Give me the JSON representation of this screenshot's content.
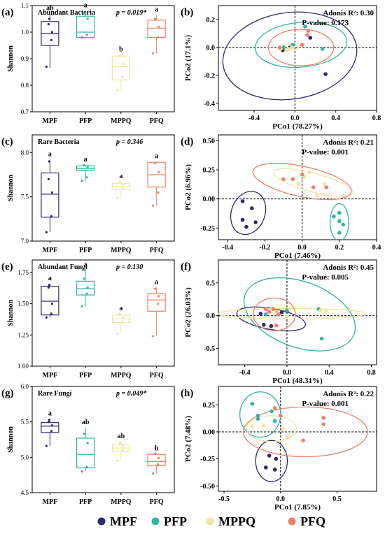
{
  "legend": [
    {
      "name": "MPF",
      "color": "#2b2a6e"
    },
    {
      "name": "PFP",
      "color": "#32b4a2"
    },
    {
      "name": "MPPQ",
      "color": "#f0e6a0"
    },
    {
      "name": "PFQ",
      "color": "#f07f68"
    }
  ],
  "chart_data": [
    {
      "type": "box",
      "panel": "(a)",
      "title": "Abundant Bacteria",
      "pvalue": "p = 0.019*",
      "ylabel": "Shannon",
      "ylim": [
        0.7,
        1.1
      ],
      "yticks": [
        0.7,
        0.8,
        0.9,
        1.0,
        1.1
      ],
      "categories": [
        "MPF",
        "PFP",
        "MPPQ",
        "PFQ"
      ],
      "letters": [
        "ab",
        "a",
        "b",
        "a"
      ],
      "boxes": [
        {
          "min": 0.865,
          "q1": 0.95,
          "median": 0.995,
          "q3": 1.04,
          "max": 1.07,
          "points": [
            0.87,
            0.97,
            1.0,
            1.03,
            1.05
          ]
        },
        {
          "min": 0.975,
          "q1": 0.98,
          "median": 1.0,
          "q3": 1.06,
          "max": 1.08,
          "points": [
            0.98,
            0.99,
            1.05,
            1.07
          ]
        },
        {
          "min": 0.78,
          "q1": 0.82,
          "median": 0.87,
          "q3": 0.91,
          "max": 0.915,
          "points": [
            0.78,
            0.83,
            0.88,
            0.91
          ]
        },
        {
          "min": 0.92,
          "q1": 0.98,
          "median": 1.015,
          "q3": 1.045,
          "max": 1.065,
          "points": [
            0.92,
            0.98,
            1.02,
            1.05
          ]
        }
      ]
    },
    {
      "type": "scatter",
      "panel": "(b)",
      "adonis": "Adonis R²: 0.30",
      "pvalue": "P-value: 0.173",
      "xlabel": "PCo1 (78.27%)",
      "ylabel": "PCo2 (17.1%)",
      "xlim": [
        -0.75,
        0.8
      ],
      "ylim": [
        -0.45,
        0.3
      ],
      "xticks": [
        -0.4,
        0.0,
        0.4,
        0.8
      ],
      "yticks": [
        -0.4,
        -0.2,
        0.0,
        0.2
      ],
      "xticklabels": [
        "-0.4",
        "0.0",
        "0.4",
        "0.8"
      ],
      "yticklabels": [
        "-0.4",
        "-0.2",
        "0.0",
        "0.2"
      ],
      "series": [
        {
          "name": "MPF",
          "points": [
            [
              -0.12,
              -0.02
            ],
            [
              -0.05,
              0.0
            ],
            [
              0.15,
              0.07
            ],
            [
              0.3,
              -0.19
            ]
          ],
          "ellipse": {
            "cx": -0.05,
            "cy": -0.06,
            "rx": 0.66,
            "ry": 0.31,
            "angle": 8
          }
        },
        {
          "name": "PFP",
          "points": [
            [
              -0.11,
              0.0
            ],
            [
              -0.02,
              0.02
            ],
            [
              0.1,
              0.15
            ],
            [
              0.27,
              -0.01
            ]
          ],
          "ellipse": {
            "cx": 0.06,
            "cy": 0.02,
            "rx": 0.45,
            "ry": 0.16,
            "angle": 5
          }
        },
        {
          "name": "MPPQ",
          "points": [
            [
              -0.14,
              -0.01
            ],
            [
              -0.08,
              -0.02
            ],
            [
              -0.06,
              -0.01
            ],
            [
              -0.03,
              0.0
            ]
          ],
          "ellipse": {
            "cx": -0.06,
            "cy": 0.0,
            "rx": 0.1,
            "ry": 0.02,
            "angle": 0
          }
        },
        {
          "name": "PFQ",
          "points": [
            [
              -0.15,
              0.0
            ],
            [
              0.07,
              0.02
            ],
            [
              0.12,
              0.09
            ],
            [
              0.13,
              0.12
            ]
          ],
          "ellipse": {
            "cx": 0.06,
            "cy": -0.0,
            "rx": 0.32,
            "ry": 0.13,
            "angle": 0
          }
        }
      ]
    },
    {
      "type": "box",
      "panel": "(c)",
      "title": "Rare Bacteria",
      "pvalue": "p = 0.346",
      "ylabel": "Shannon",
      "ylim": [
        7.0,
        8.2
      ],
      "yticks": [
        7.0,
        7.5,
        8.0
      ],
      "categories": [
        "MPF",
        "PFP",
        "MPPQ",
        "PFQ"
      ],
      "letters": [
        "a",
        "a",
        "a",
        "a"
      ],
      "boxes": [
        {
          "min": 7.1,
          "q1": 7.27,
          "median": 7.53,
          "q3": 7.77,
          "max": 7.92,
          "points": [
            7.1,
            7.28,
            7.55,
            7.7,
            7.9
          ]
        },
        {
          "min": 7.68,
          "q1": 7.8,
          "median": 7.82,
          "q3": 7.85,
          "max": 7.86,
          "points": [
            7.68,
            7.72,
            7.84,
            7.86
          ]
        },
        {
          "min": 7.48,
          "q1": 7.58,
          "median": 7.62,
          "q3": 7.65,
          "max": 7.67,
          "points": [
            7.49,
            7.6,
            7.64,
            7.67
          ]
        },
        {
          "min": 7.4,
          "q1": 7.61,
          "median": 7.75,
          "q3": 7.89,
          "max": 7.9,
          "points": [
            7.4,
            7.55,
            7.78,
            7.88
          ]
        }
      ]
    },
    {
      "type": "scatter",
      "panel": "(d)",
      "adonis": "Adonis R²: 0.21",
      "pvalue": "P-value: 0.001",
      "xlabel": "PCo1 (7.46%)",
      "ylabel": "PCo2 (6.96%)",
      "xlim": [
        -0.45,
        0.4
      ],
      "ylim": [
        -0.35,
        0.55
      ],
      "xticks": [
        -0.4,
        -0.2,
        0.0,
        0.2,
        0.4
      ],
      "yticks": [
        -0.25,
        0.0,
        0.25,
        0.5
      ],
      "xticklabels": [
        "-0.4",
        "-0.2",
        "0.0",
        "0.2",
        "0.4"
      ],
      "yticklabels": [
        "-0.25",
        "0.00",
        "0.25",
        "0.50"
      ],
      "series": [
        {
          "name": "MPF",
          "points": [
            [
              -0.32,
              -0.02
            ],
            [
              -0.27,
              -0.08
            ],
            [
              -0.32,
              -0.18
            ],
            [
              -0.3,
              -0.24
            ],
            [
              -0.25,
              -0.2
            ]
          ],
          "ellipse": {
            "cx": -0.29,
            "cy": -0.12,
            "rx": 0.09,
            "ry": 0.19,
            "angle": -20
          }
        },
        {
          "name": "PFP",
          "points": [
            [
              0.17,
              -0.15
            ],
            [
              0.2,
              -0.19
            ],
            [
              0.2,
              -0.29
            ],
            [
              0.22,
              -0.22
            ],
            [
              0.2,
              -0.12
            ]
          ],
          "ellipse": {
            "cx": 0.2,
            "cy": -0.2,
            "rx": 0.05,
            "ry": 0.16,
            "angle": 0
          }
        },
        {
          "name": "MPPQ",
          "points": [
            [
              -0.02,
              0.13
            ],
            [
              0.01,
              0.19
            ],
            [
              0.04,
              0.23
            ],
            [
              0.12,
              0.13
            ],
            [
              0.08,
              0.03
            ]
          ],
          "ellipse": {
            "cx": 0.06,
            "cy": 0.14,
            "rx": 0.22,
            "ry": 0.08,
            "angle": -15
          }
        },
        {
          "name": "PFQ",
          "points": [
            [
              -0.1,
              0.17
            ],
            [
              -0.05,
              0.17
            ],
            [
              0.0,
              0.21
            ],
            [
              0.06,
              0.1
            ],
            [
              0.13,
              0.1
            ]
          ],
          "ellipse": {
            "cx": 0.0,
            "cy": 0.15,
            "rx": 0.27,
            "ry": 0.13,
            "angle": -12
          }
        }
      ]
    },
    {
      "type": "box",
      "panel": "(e)",
      "title": "Abundant Fungi",
      "pvalue": "p = 0.130",
      "ylabel": "Shannon",
      "ylim": [
        1.0,
        1.85
      ],
      "yticks": [
        1.0,
        1.25,
        1.5,
        1.75
      ],
      "yticklabels": [
        "1.00",
        "1.25",
        "1.50",
        "1.75"
      ],
      "categories": [
        "MPF",
        "PFP",
        "MPPQ",
        "PFQ"
      ],
      "letters": [
        "a",
        "a",
        "a",
        "a"
      ],
      "boxes": [
        {
          "min": 1.39,
          "q1": 1.41,
          "median": 1.52,
          "q3": 1.64,
          "max": 1.66,
          "points": [
            1.39,
            1.42,
            1.5,
            1.63,
            1.65
          ]
        },
        {
          "min": 1.48,
          "q1": 1.57,
          "median": 1.62,
          "q3": 1.68,
          "max": 1.77,
          "points": [
            1.48,
            1.58,
            1.63,
            1.7,
            1.77
          ]
        },
        {
          "min": 1.26,
          "q1": 1.35,
          "median": 1.38,
          "q3": 1.41,
          "max": 1.42,
          "points": [
            1.26,
            1.36,
            1.39,
            1.42
          ]
        },
        {
          "min": 1.24,
          "q1": 1.44,
          "median": 1.53,
          "q3": 1.58,
          "max": 1.63,
          "points": [
            1.24,
            1.5,
            1.56,
            1.62
          ]
        }
      ]
    },
    {
      "type": "scatter",
      "panel": "(f)",
      "adonis": "Adonis R²: 0.45",
      "pvalue": "P-value: 0.005",
      "xlabel": "PCo1 (48.31%)",
      "ylabel": "PCo2 (26.03%)",
      "xlim": [
        -0.65,
        0.85
      ],
      "ylim": [
        -0.75,
        0.85
      ],
      "xticks": [
        -0.4,
        0.0,
        0.4,
        0.8
      ],
      "yticks": [
        -0.5,
        0.0,
        0.5
      ],
      "xticklabels": [
        "-0.4",
        "0.0",
        "0.4",
        "0.8"
      ],
      "yticklabels": [
        "-0.5",
        "0.0",
        "0.5"
      ],
      "series": [
        {
          "name": "MPF",
          "points": [
            [
              -0.25,
              0.03
            ],
            [
              -0.22,
              -0.14
            ],
            [
              -0.15,
              -0.16
            ],
            [
              -0.05,
              0.05
            ],
            [
              0.0,
              0.07
            ]
          ],
          "ellipse": {
            "cx": -0.15,
            "cy": -0.05,
            "rx": 0.33,
            "ry": 0.16,
            "angle": -10
          }
        },
        {
          "name": "PFP",
          "points": [
            [
              -0.2,
              0.02
            ],
            [
              -0.1,
              0.05
            ],
            [
              0.0,
              0.08
            ],
            [
              0.3,
              0.1
            ],
            [
              0.33,
              -0.35
            ]
          ],
          "ellipse": {
            "cx": 0.12,
            "cy": 0.02,
            "rx": 0.55,
            "ry": 0.5,
            "angle": -20
          }
        },
        {
          "name": "MPPQ",
          "points": [
            [
              -0.15,
              0.05
            ],
            [
              -0.1,
              0.04
            ],
            [
              0.0,
              0.0
            ],
            [
              0.32,
              0.08
            ],
            [
              0.37,
              0.07
            ]
          ],
          "ellipse": {
            "cx": 0.05,
            "cy": 0.03,
            "rx": 0.7,
            "ry": 0.08,
            "angle": 0
          }
        },
        {
          "name": "PFQ",
          "points": [
            [
              -0.2,
              0.1
            ],
            [
              -0.17,
              0.06
            ],
            [
              -0.13,
              0.1
            ],
            [
              -0.08,
              0.02
            ],
            [
              -0.1,
              -0.15
            ]
          ],
          "ellipse": {
            "cx": -0.12,
            "cy": 0.02,
            "rx": 0.2,
            "ry": 0.25,
            "angle": 0
          }
        }
      ]
    },
    {
      "type": "box",
      "panel": "(g)",
      "title": "Rare Fungi",
      "pvalue": "p = 0.049*",
      "ylabel": "Shannon",
      "ylim": [
        4.5,
        6.0
      ],
      "yticks": [
        4.5,
        5.0,
        5.5,
        6.0
      ],
      "categories": [
        "MPF",
        "PFP",
        "MPPQ",
        "PFQ"
      ],
      "letters": [
        "a",
        "ab",
        "ab",
        "b"
      ],
      "boxes": [
        {
          "min": 5.16,
          "q1": 5.35,
          "median": 5.44,
          "q3": 5.49,
          "max": 5.54,
          "points": [
            5.16,
            5.37,
            5.45,
            5.5,
            5.53
          ]
        },
        {
          "min": 4.8,
          "q1": 4.85,
          "median": 5.04,
          "q3": 5.27,
          "max": 5.42,
          "points": [
            4.8,
            4.86,
            5.2,
            5.33
          ]
        },
        {
          "min": 4.95,
          "q1": 5.08,
          "median": 5.13,
          "q3": 5.18,
          "max": 5.22,
          "points": [
            4.95,
            5.1,
            5.16,
            5.2
          ]
        },
        {
          "min": 4.77,
          "q1": 4.88,
          "median": 4.94,
          "q3": 5.04,
          "max": 5.05,
          "points": [
            4.77,
            4.9,
            4.99,
            5.05
          ]
        }
      ]
    },
    {
      "type": "scatter",
      "panel": "(h)",
      "adonis": "Adonis R²: 0.22",
      "pvalue": "P-value: 0.001",
      "xlabel": "PCo1 (7.85%)",
      "ylabel": "PCo2 (7.48%)",
      "xlim": [
        -0.55,
        0.85
      ],
      "ylim": [
        -0.55,
        0.42
      ],
      "xticks": [
        -0.5,
        0.0,
        0.5
      ],
      "yticks": [
        -0.5,
        -0.25,
        0.0,
        0.25
      ],
      "xticklabels": [
        "-0.5",
        "0.0",
        "0.5"
      ],
      "yticklabels": [
        "-0.50",
        "-0.25",
        "0.00",
        "0.25"
      ],
      "series": [
        {
          "name": "MPF",
          "points": [
            [
              -0.1,
              -0.22
            ],
            [
              -0.04,
              -0.25
            ],
            [
              -0.05,
              -0.35
            ],
            [
              -0.13,
              -0.33
            ]
          ],
          "ellipse": {
            "cx": -0.08,
            "cy": -0.27,
            "rx": 0.14,
            "ry": 0.19,
            "angle": 0
          }
        },
        {
          "name": "PFP",
          "points": [
            [
              -0.25,
              0.26
            ],
            [
              -0.2,
              0.15
            ],
            [
              -0.2,
              0.12
            ],
            [
              -0.08,
              0.19
            ],
            [
              -0.05,
              0.1
            ]
          ],
          "ellipse": {
            "cx": -0.18,
            "cy": 0.16,
            "rx": 0.18,
            "ry": 0.21,
            "angle": 0
          }
        },
        {
          "name": "MPPQ",
          "points": [
            [
              -0.25,
              0.05
            ],
            [
              -0.15,
              0.06
            ],
            [
              0.02,
              0.03
            ],
            [
              0.07,
              -0.04
            ]
          ],
          "ellipse": {
            "cx": -0.08,
            "cy": 0.03,
            "rx": 0.22,
            "ry": 0.12,
            "angle": 0
          }
        },
        {
          "name": "PFQ",
          "points": [
            [
              -0.05,
              0.22
            ],
            [
              0.0,
              0.15
            ],
            [
              0.2,
              -0.08
            ],
            [
              0.38,
              0.13
            ],
            [
              0.38,
              0.07
            ]
          ],
          "ellipse": {
            "cx": 0.22,
            "cy": 0.0,
            "rx": 0.55,
            "ry": 0.23,
            "angle": 0
          }
        }
      ]
    }
  ]
}
